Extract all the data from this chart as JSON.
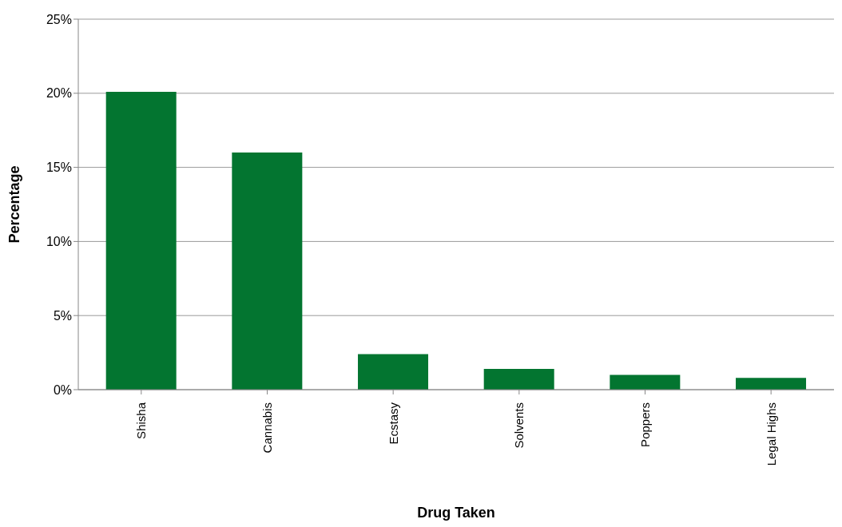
{
  "chart_data": {
    "type": "bar",
    "xlabel": "Drug Taken",
    "ylabel": "Percentage",
    "categories": [
      "Shisha",
      "Cannabis",
      "Ecstasy",
      "Solvents",
      "Poppers",
      "Legal Highs"
    ],
    "values": [
      20.1,
      16.0,
      2.4,
      1.4,
      1.0,
      0.8
    ],
    "color": "#037530",
    "ylim": [
      0,
      25
    ],
    "yticks": [
      {
        "value": 0,
        "label": "0%"
      },
      {
        "value": 5,
        "label": "5%"
      },
      {
        "value": 10,
        "label": "10%"
      },
      {
        "value": 15,
        "label": "15%"
      },
      {
        "value": 20,
        "label": "20%"
      },
      {
        "value": 25,
        "label": "25%"
      }
    ],
    "grid": "y",
    "legend": false
  }
}
